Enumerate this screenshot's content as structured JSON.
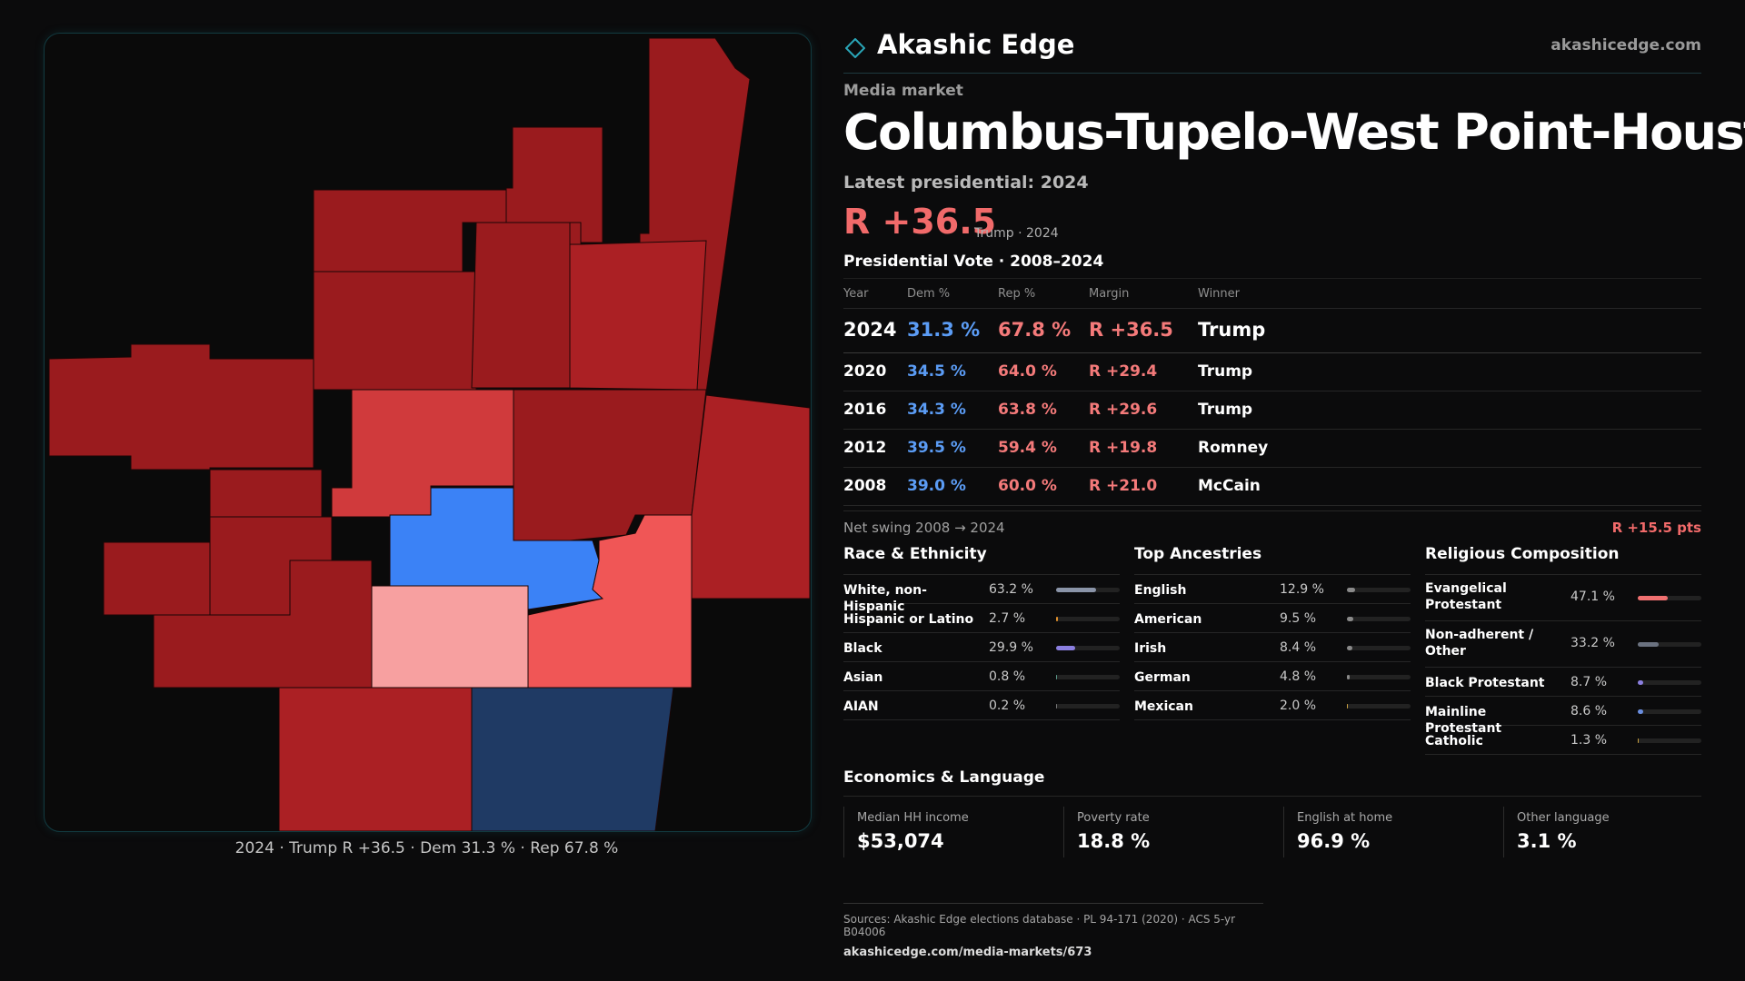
{
  "brand": {
    "name": "Akashic Edge",
    "url": "akashicedge.com"
  },
  "header": {
    "kicker": "Media market",
    "title": "Columbus-Tupelo-West Point-Houston",
    "latest_label": "Latest presidential: 2024",
    "margin": "R +36.5",
    "margin_sub": "Trump · 2024"
  },
  "map": {
    "caption": "2024 · Trump R +36.5 · Dem 31.3 % · Rep 67.8 %",
    "colors": {
      "solid_r": "#9a1b1e",
      "strong_r": "#ab2024",
      "lean_r": "#d03a3c",
      "tilt_r": "#f05656",
      "light_r": "#f7a0a0",
      "dem": "#3b82f6",
      "dark_dem": "#1f3a64"
    }
  },
  "votes": {
    "title": "Presidential Vote · 2008–2024",
    "headers": {
      "year": "Year",
      "dem": "Dem %",
      "rep": "Rep %",
      "margin": "Margin",
      "winner": "Winner"
    },
    "rows": [
      {
        "year": "2024",
        "dem": "31.3 %",
        "rep": "67.8 %",
        "margin": "R +36.5",
        "winner": "Trump"
      },
      {
        "year": "2020",
        "dem": "34.5 %",
        "rep": "64.0 %",
        "margin": "R +29.4",
        "winner": "Trump"
      },
      {
        "year": "2016",
        "dem": "34.3 %",
        "rep": "63.8 %",
        "margin": "R +29.6",
        "winner": "Trump"
      },
      {
        "year": "2012",
        "dem": "39.5 %",
        "rep": "59.4 %",
        "margin": "R +19.8",
        "winner": "Romney"
      },
      {
        "year": "2008",
        "dem": "39.0 %",
        "rep": "60.0 %",
        "margin": "R +21.0",
        "winner": "McCain"
      }
    ],
    "swing_label": "Net swing 2008 → 2024",
    "swing_value": "R +15.5 pts"
  },
  "race": {
    "title": "Race & Ethnicity",
    "items": [
      {
        "name": "White, non-Hispanic",
        "value": "63.2 %",
        "pct": 63.2,
        "color": "#8a94a8"
      },
      {
        "name": "Hispanic or Latino",
        "value": "2.7 %",
        "pct": 2.7,
        "color": "#e0902c"
      },
      {
        "name": "Black",
        "value": "29.9 %",
        "pct": 29.9,
        "color": "#8b7fe0"
      },
      {
        "name": "Asian",
        "value": "0.8 %",
        "pct": 0.8,
        "color": "#5a9a8a"
      },
      {
        "name": "AIAN",
        "value": "0.2 %",
        "pct": 0.2,
        "color": "#777777"
      }
    ]
  },
  "ancestry": {
    "title": "Top Ancestries",
    "items": [
      {
        "name": "English",
        "value": "12.9 %",
        "pct": 12.9,
        "color": "#8a8a8a"
      },
      {
        "name": "American",
        "value": "9.5 %",
        "pct": 9.5,
        "color": "#8a8a8a"
      },
      {
        "name": "Irish",
        "value": "8.4 %",
        "pct": 8.4,
        "color": "#8a8a8a"
      },
      {
        "name": "German",
        "value": "4.8 %",
        "pct": 4.8,
        "color": "#8a8a8a"
      },
      {
        "name": "Mexican",
        "value": "2.0 %",
        "pct": 2.0,
        "color": "#c8a040"
      }
    ]
  },
  "religion": {
    "title": "Religious Composition",
    "items": [
      {
        "name": "Evangelical Protestant",
        "value": "47.1 %",
        "pct": 47.1,
        "color": "#f07070"
      },
      {
        "name": "Non-adherent / Other",
        "value": "33.2 %",
        "pct": 33.2,
        "color": "#6b7280"
      },
      {
        "name": "Black Protestant",
        "value": "8.7 %",
        "pct": 8.7,
        "color": "#8b7fe0"
      },
      {
        "name": "Mainline Protestant",
        "value": "8.6 %",
        "pct": 8.6,
        "color": "#6a8ee0"
      },
      {
        "name": "Catholic",
        "value": "1.3 %",
        "pct": 1.3,
        "color": "#c8a040"
      }
    ]
  },
  "economics": {
    "title": "Economics & Language",
    "cells": [
      {
        "label": "Median HH income",
        "value": "$53,074"
      },
      {
        "label": "Poverty rate",
        "value": "18.8 %"
      },
      {
        "label": "English at home",
        "value": "96.9 %"
      },
      {
        "label": "Other language",
        "value": "3.1 %"
      }
    ]
  },
  "sources": {
    "line1": "Sources: Akashic Edge elections database · PL 94-171 (2020) · ACS 5-yr B04006",
    "line2": "akashicedge.com/media-markets/673"
  }
}
